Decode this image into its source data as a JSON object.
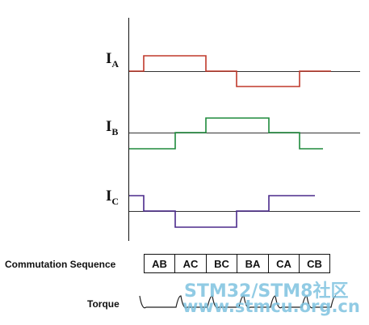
{
  "signals": [
    {
      "id": "IA",
      "main": "I",
      "sub": "A",
      "color": "#c0392b"
    },
    {
      "id": "IB",
      "main": "I",
      "sub": "B",
      "color": "#1e8a3c"
    },
    {
      "id": "IC",
      "main": "I",
      "sub": "C",
      "color": "#4b2a8c"
    }
  ],
  "labels": {
    "commutation": "Commutation Sequence",
    "torque": "Torque"
  },
  "sequence": [
    "AB",
    "AC",
    "BC",
    "BA",
    "CA",
    "CB"
  ],
  "watermark": {
    "line1": "STM32/STM8社区",
    "line2": "www.stmcu.org.cn"
  }
}
